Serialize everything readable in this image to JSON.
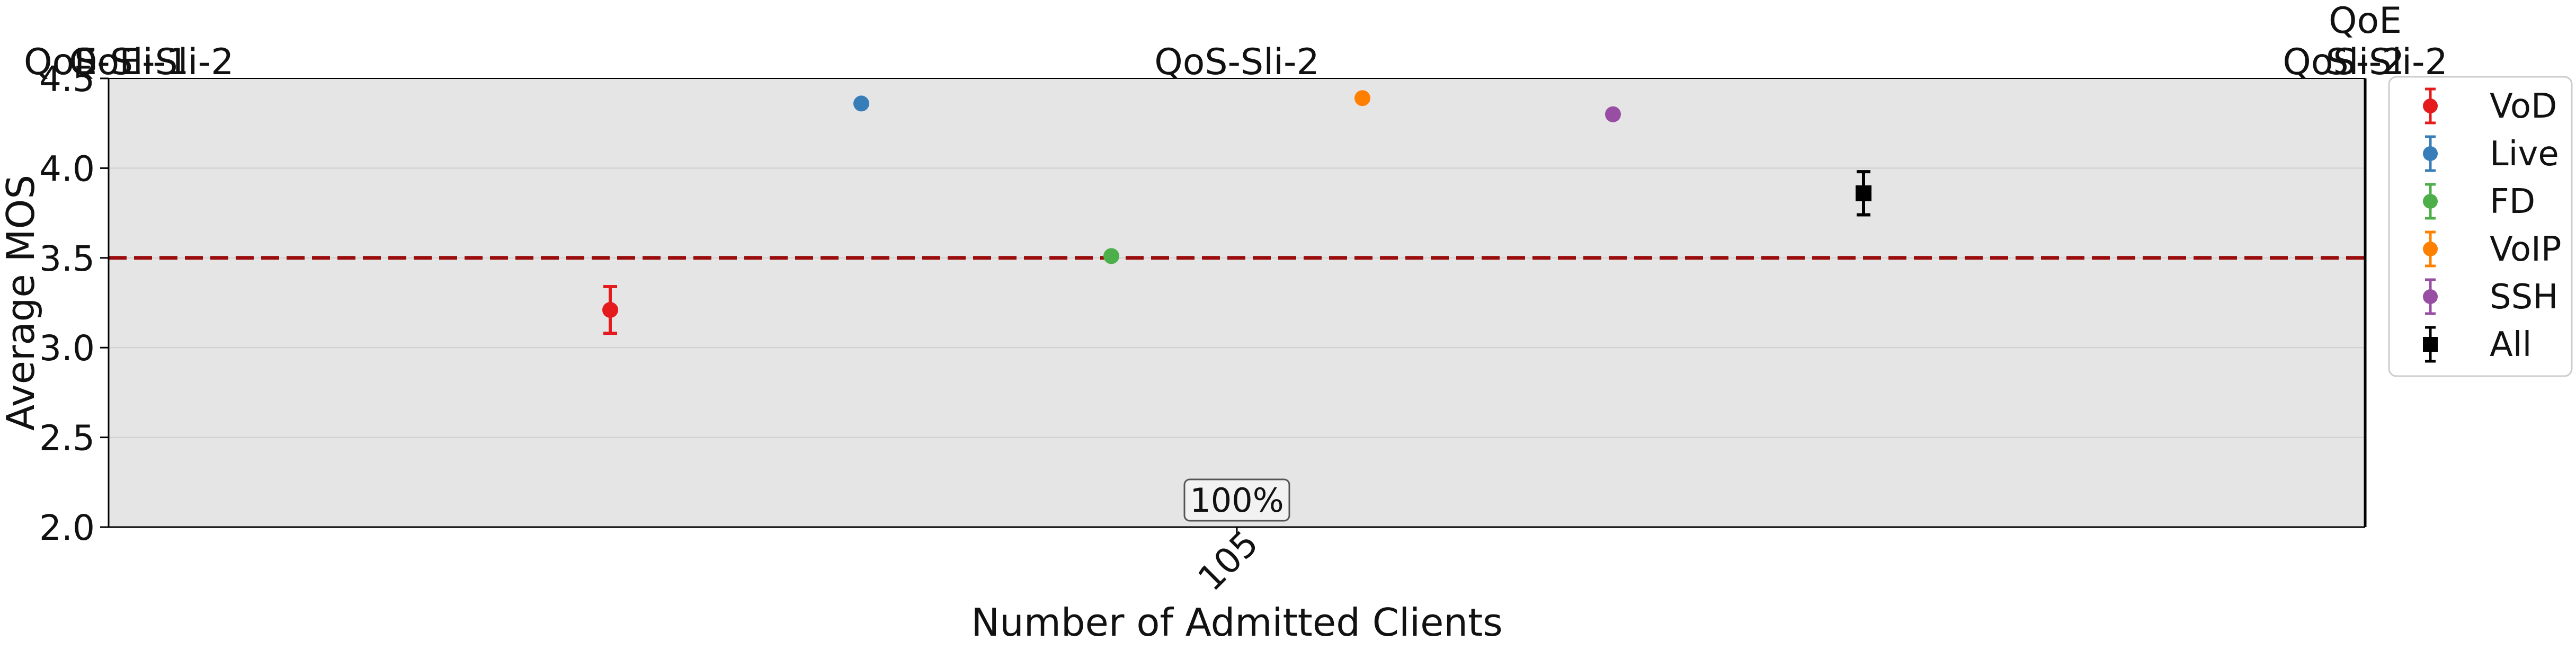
{
  "chart_data": {
    "type": "scatter",
    "xlabel": "Number of Admitted Clients",
    "ylabel": "Average MOS",
    "ylim": [
      2.0,
      4.5
    ],
    "yticks": [
      "2.0",
      "2.5",
      "3.0",
      "3.5",
      "4.0",
      "4.5"
    ],
    "categories": [
      "105"
    ],
    "threshold": 3.5,
    "grid": "horizontal",
    "legend_position": "right",
    "background": "#e5e5e5",
    "top_labels": [
      "QoS-Sli-1",
      "QoE-Sli-1",
      "QoE-Sli-2",
      "QoS-Sli-2",
      "QoE Sli-2",
      "QoS-Sli-2"
    ],
    "box_label": "100%",
    "series": [
      {
        "name": "VoD",
        "color": "#e41a1c",
        "marker": "circle",
        "value": 3.21,
        "err": 0.13,
        "slot": 0
      },
      {
        "name": "Live",
        "color": "#377eb8",
        "marker": "circle",
        "value": 4.36,
        "err": 0.0,
        "slot": 1
      },
      {
        "name": "FD",
        "color": "#4daf4a",
        "marker": "circle",
        "value": 3.51,
        "err": 0.0,
        "slot": 2
      },
      {
        "name": "VoIP",
        "color": "#ff7f00",
        "marker": "circle",
        "value": 4.39,
        "err": 0.0,
        "slot": 3
      },
      {
        "name": "SSH",
        "color": "#984ea3",
        "marker": "circle",
        "value": 4.3,
        "err": 0.0,
        "slot": 4
      },
      {
        "name": "All",
        "color": "#000000",
        "marker": "square",
        "value": 3.86,
        "err": 0.12,
        "slot": 5
      }
    ]
  }
}
